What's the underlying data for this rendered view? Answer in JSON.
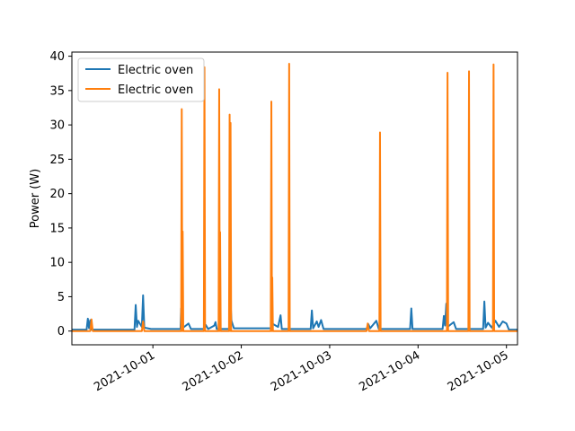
{
  "chart_data": {
    "type": "line",
    "title": "",
    "xlabel": "",
    "ylabel": "Power (W)",
    "x_ticks": [
      "2021-10-01",
      "2021-10-02",
      "2021-10-03",
      "2021-10-04",
      "2021-10-05"
    ],
    "y_ticks": [
      0,
      5,
      10,
      15,
      20,
      25,
      30,
      35,
      40
    ],
    "xlim": [
      "2021-09-30 02:00",
      "2021-10-05 03:00"
    ],
    "ylim": [
      -2,
      40.6
    ],
    "grid": false,
    "legend": "top-left",
    "series": [
      {
        "name": "Electric oven",
        "color": "#1f77b4",
        "points": [
          [
            "2021-09-30 02:00",
            0.2
          ],
          [
            "2021-09-30 06:00",
            0.2
          ],
          [
            "2021-09-30 06:20",
            1.8
          ],
          [
            "2021-09-30 06:40",
            0.4
          ],
          [
            "2021-09-30 07:00",
            1.6
          ],
          [
            "2021-09-30 07:20",
            0.2
          ],
          [
            "2021-09-30 19:00",
            0.2
          ],
          [
            "2021-09-30 19:20",
            3.8
          ],
          [
            "2021-09-30 19:40",
            0.6
          ],
          [
            "2021-09-30 20:00",
            1.5
          ],
          [
            "2021-09-30 21:00",
            0.6
          ],
          [
            "2021-09-30 21:20",
            5.2
          ],
          [
            "2021-09-30 21:40",
            0.5
          ],
          [
            "2021-09-30 23:30",
            0.3
          ],
          [
            "2021-10-01 07:30",
            0.3
          ],
          [
            "2021-10-01 07:40",
            3.3
          ],
          [
            "2021-10-01 08:00",
            0.4
          ],
          [
            "2021-10-01 09:40",
            1.1
          ],
          [
            "2021-10-01 10:20",
            0.3
          ],
          [
            "2021-10-01 14:00",
            0.3
          ],
          [
            "2021-10-01 14:20",
            0.9
          ],
          [
            "2021-10-01 15:00",
            0.3
          ],
          [
            "2021-10-01 16:40",
            0.8
          ],
          [
            "2021-10-01 17:00",
            1.3
          ],
          [
            "2021-10-01 17:20",
            0.3
          ],
          [
            "2021-10-01 20:40",
            0.3
          ],
          [
            "2021-10-01 21:00",
            5.0
          ],
          [
            "2021-10-01 21:20",
            1.5
          ],
          [
            "2021-10-01 22:00",
            0.4
          ],
          [
            "2021-10-02 08:00",
            0.4
          ],
          [
            "2021-10-02 08:20",
            1.1
          ],
          [
            "2021-10-02 10:00",
            0.6
          ],
          [
            "2021-10-02 10:40",
            2.3
          ],
          [
            "2021-10-02 11:00",
            0.3
          ],
          [
            "2021-10-02 18:50",
            0.3
          ],
          [
            "2021-10-02 19:10",
            3.0
          ],
          [
            "2021-10-02 19:30",
            0.4
          ],
          [
            "2021-10-02 20:30",
            1.4
          ],
          [
            "2021-10-02 21:00",
            0.6
          ],
          [
            "2021-10-02 21:40",
            1.6
          ],
          [
            "2021-10-02 22:20",
            0.3
          ],
          [
            "2021-10-03 10:00",
            0.3
          ],
          [
            "2021-10-03 10:30",
            1.0
          ],
          [
            "2021-10-03 11:00",
            0.4
          ],
          [
            "2021-10-03 12:40",
            1.5
          ],
          [
            "2021-10-03 13:20",
            0.3
          ],
          [
            "2021-10-03 21:50",
            0.3
          ],
          [
            "2021-10-03 22:10",
            3.3
          ],
          [
            "2021-10-03 22:30",
            0.3
          ],
          [
            "2021-10-04 06:40",
            0.3
          ],
          [
            "2021-10-04 07:00",
            2.2
          ],
          [
            "2021-10-04 07:20",
            0.8
          ],
          [
            "2021-10-04 07:40",
            4.0
          ],
          [
            "2021-10-04 08:00",
            0.6
          ],
          [
            "2021-10-04 09:40",
            1.3
          ],
          [
            "2021-10-04 10:20",
            0.3
          ],
          [
            "2021-10-04 17:40",
            0.3
          ],
          [
            "2021-10-04 18:00",
            4.3
          ],
          [
            "2021-10-04 18:20",
            0.5
          ],
          [
            "2021-10-04 19:00",
            1.2
          ],
          [
            "2021-10-04 20:00",
            0.5
          ],
          [
            "2021-10-04 21:00",
            1.5
          ],
          [
            "2021-10-04 22:00",
            0.6
          ],
          [
            "2021-10-04 23:00",
            1.4
          ],
          [
            "2021-10-05 00:00",
            1.1
          ],
          [
            "2021-10-05 00:40",
            0.2
          ],
          [
            "2021-10-05 03:00",
            0.2
          ]
        ]
      },
      {
        "name": "Electric oven",
        "color": "#ff7f0e",
        "points": [
          [
            "2021-09-30 02:00",
            0.0
          ],
          [
            "2021-09-30 07:00",
            0.0
          ],
          [
            "2021-09-30 07:20",
            1.7
          ],
          [
            "2021-09-30 07:40",
            0.0
          ],
          [
            "2021-09-30 21:00",
            0.0
          ],
          [
            "2021-09-30 21:20",
            1.4
          ],
          [
            "2021-09-30 21:40",
            0.0
          ],
          [
            "2021-10-01 07:40",
            0.0
          ],
          [
            "2021-10-01 07:50",
            32.3
          ],
          [
            "2021-10-01 08:00",
            0.0
          ],
          [
            "2021-10-01 08:05",
            14.5
          ],
          [
            "2021-10-01 08:15",
            0.0
          ],
          [
            "2021-10-01 13:50",
            0.0
          ],
          [
            "2021-10-01 14:00",
            38.4
          ],
          [
            "2021-10-01 14:10",
            0.0
          ],
          [
            "2021-10-01 17:50",
            0.0
          ],
          [
            "2021-10-01 18:00",
            35.2
          ],
          [
            "2021-10-01 18:10",
            0.0
          ],
          [
            "2021-10-01 18:15",
            14.4
          ],
          [
            "2021-10-01 18:25",
            0.0
          ],
          [
            "2021-10-01 20:40",
            0.0
          ],
          [
            "2021-10-01 20:50",
            31.5
          ],
          [
            "2021-10-01 21:00",
            0.0
          ],
          [
            "2021-10-01 21:05",
            30.3
          ],
          [
            "2021-10-01 21:15",
            0.0
          ],
          [
            "2021-10-02 08:00",
            0.0
          ],
          [
            "2021-10-02 08:10",
            33.4
          ],
          [
            "2021-10-02 08:20",
            0.0
          ],
          [
            "2021-10-02 08:25",
            7.8
          ],
          [
            "2021-10-02 08:35",
            0.0
          ],
          [
            "2021-10-02 12:50",
            0.0
          ],
          [
            "2021-10-02 13:00",
            38.9
          ],
          [
            "2021-10-02 13:10",
            0.0
          ],
          [
            "2021-10-03 10:00",
            0.0
          ],
          [
            "2021-10-03 10:20",
            1.1
          ],
          [
            "2021-10-03 10:40",
            0.0
          ],
          [
            "2021-10-03 13:30",
            0.0
          ],
          [
            "2021-10-03 13:40",
            28.9
          ],
          [
            "2021-10-03 13:50",
            0.0
          ],
          [
            "2021-10-04 07:50",
            0.0
          ],
          [
            "2021-10-04 08:00",
            37.6
          ],
          [
            "2021-10-04 08:10",
            0.0
          ],
          [
            "2021-10-04 13:40",
            0.0
          ],
          [
            "2021-10-04 13:50",
            37.8
          ],
          [
            "2021-10-04 14:00",
            0.0
          ],
          [
            "2021-10-04 20:20",
            0.0
          ],
          [
            "2021-10-04 20:30",
            38.8
          ],
          [
            "2021-10-04 20:40",
            0.0
          ],
          [
            "2021-10-05 03:00",
            0.0
          ]
        ]
      }
    ]
  }
}
